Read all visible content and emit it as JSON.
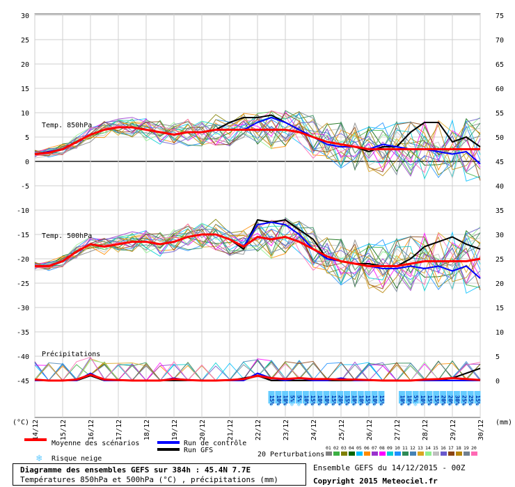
{
  "chart_data": {
    "type": "line",
    "title": "Diagramme des ensembles GEFS sur 384h : 45.4N 7.7E",
    "subtitle": "Températures 850hPa et 500hPa (°C) , précipitations (mm)",
    "run_info": "Ensemble GEFS du 14/12/2015 - 00Z",
    "copyright": "Copyright 2015 Meteociel.fr",
    "y_left_label": "(°C)",
    "y_right_label": "(mm)",
    "y_left_ticks": [
      30,
      25,
      20,
      15,
      10,
      5,
      0,
      -5,
      -10,
      -15,
      -20,
      -25,
      -30,
      -35,
      -40,
      -45
    ],
    "y_right_ticks": [
      75,
      70,
      65,
      60,
      55,
      50,
      45,
      40,
      35,
      30,
      25,
      20,
      15,
      10,
      5,
      0
    ],
    "ylim_left": [
      -45,
      30
    ],
    "ylim_right": [
      0,
      75
    ],
    "xlim": [
      14,
      30
    ],
    "x_ticks": [
      "14/12",
      "15/12",
      "16/12",
      "17/12",
      "18/12",
      "19/12",
      "20/12",
      "21/12",
      "22/12",
      "23/12",
      "24/12",
      "25/12",
      "26/12",
      "27/12",
      "28/12",
      "29/12",
      "30/12"
    ],
    "panel_labels": {
      "t850": "Temp. 850hPa",
      "t500": "Temp. 500hPa",
      "precip": "Précipitations"
    },
    "grid": true,
    "colors": {
      "mean": "#ff0000",
      "control": "#0000ff",
      "gfs": "#000000",
      "snow": "#66ccff"
    },
    "snow_risk": {
      "label": "Risque neige",
      "values": [
        "15%",
        "10%",
        "10%",
        "5%",
        "5%",
        "10%",
        "15%",
        "10%",
        "10%",
        "15%",
        "20%",
        "15%",
        "10%",
        "10%",
        "15%",
        "10%",
        "15%",
        "",
        "",
        "10%",
        "10%",
        "5%",
        "10%",
        "15%",
        "15%",
        "20%",
        "20%",
        "30%",
        "25%",
        "25%",
        "15%"
      ]
    },
    "legend": {
      "mean": "Moyenne des scénarios",
      "control": "Run de contrôle",
      "gfs": "Run GFS",
      "perturbations": "20 Perturbations",
      "pert_numbers": [
        "01",
        "02",
        "03",
        "04",
        "05",
        "06",
        "07",
        "08",
        "09",
        "10",
        "11",
        "12",
        "13",
        "14",
        "15",
        "16",
        "17",
        "18",
        "19",
        "20"
      ],
      "pert_colors": [
        "#808080",
        "#3cb043",
        "#808000",
        "#006400",
        "#00bfff",
        "#ff8c00",
        "#9932cc",
        "#ff00ff",
        "#00ced1",
        "#1e90ff",
        "#2e8b57",
        "#4682b4",
        "#daa520",
        "#90ee90",
        "#c0c0c0",
        "#6a5acd",
        "#8b4513",
        "#b8860b",
        "#708090",
        "#ff69b4"
      ]
    },
    "series": [
      {
        "name": "Moyenne des scénarios",
        "panel": "t850",
        "x": [
          14,
          14.5,
          15,
          15.5,
          16,
          16.5,
          17,
          17.5,
          18,
          18.5,
          19,
          19.5,
          20,
          20.5,
          21,
          21.5,
          22,
          22.5,
          23,
          23.5,
          24,
          24.5,
          25,
          25.5,
          26,
          26.5,
          27,
          27.5,
          28,
          28.5,
          29,
          29.5,
          30
        ],
        "values": [
          1.5,
          1.8,
          2.5,
          4,
          5.5,
          6.5,
          7,
          7,
          6.5,
          6,
          5.5,
          6,
          6,
          6.5,
          6.5,
          6.5,
          6.5,
          6.5,
          6.5,
          6,
          5,
          4,
          3.5,
          3,
          2.5,
          2.5,
          2.5,
          2.5,
          2.5,
          2.5,
          2.5,
          2.5,
          2.5
        ]
      },
      {
        "name": "Run de contrôle",
        "panel": "t850",
        "x": [
          14,
          14.5,
          15,
          15.5,
          16,
          16.5,
          17,
          17.5,
          18,
          18.5,
          19,
          19.5,
          20,
          20.5,
          21,
          21.5,
          22,
          22.5,
          23,
          23.5,
          24,
          24.5,
          25,
          25.5,
          26,
          26.5,
          27,
          27.5,
          28,
          28.5,
          29,
          29.5,
          30
        ],
        "values": [
          1.5,
          2,
          2.5,
          4,
          5.5,
          6.5,
          7,
          7,
          6.5,
          6,
          5.5,
          6,
          6,
          6.5,
          6.5,
          6.5,
          8,
          9,
          8,
          6.5,
          5,
          3.5,
          3,
          3,
          2.5,
          3.5,
          3,
          2.5,
          2.5,
          2,
          1.5,
          2,
          -0.5
        ]
      },
      {
        "name": "Run GFS",
        "panel": "t850",
        "x": [
          14,
          14.5,
          15,
          15.5,
          16,
          16.5,
          17,
          17.5,
          18,
          18.5,
          19,
          19.5,
          20,
          20.5,
          21,
          21.5,
          22,
          22.5,
          23,
          23.5,
          24,
          24.5,
          25,
          25.5,
          26,
          26.5,
          27,
          27.5,
          28,
          28.5,
          29,
          29.5,
          30
        ],
        "values": [
          1.5,
          2,
          2.5,
          4,
          5.5,
          6.5,
          7,
          7,
          6.5,
          6,
          5.5,
          6,
          6,
          6.5,
          8,
          9,
          9,
          9.5,
          8,
          6.5,
          5,
          4,
          3.5,
          3,
          2,
          3,
          3,
          6,
          8,
          8,
          4,
          5,
          3
        ]
      },
      {
        "name": "Moyenne des scénarios",
        "panel": "t500",
        "x": [
          14,
          14.5,
          15,
          15.5,
          16,
          16.5,
          17,
          17.5,
          18,
          18.5,
          19,
          19.5,
          20,
          20.5,
          21,
          21.5,
          22,
          22.5,
          23,
          23.5,
          24,
          24.5,
          25,
          25.5,
          26,
          26.5,
          27,
          27.5,
          28,
          28.5,
          29,
          29.5,
          30
        ],
        "values": [
          -21.5,
          -21.5,
          -20.5,
          -18.5,
          -17,
          -17.5,
          -17,
          -16.5,
          -16.5,
          -17,
          -16.5,
          -15.5,
          -15,
          -15,
          -16,
          -17.5,
          -15.5,
          -16,
          -15.5,
          -16.5,
          -18,
          -19.5,
          -20.5,
          -21,
          -21.5,
          -21.5,
          -21.5,
          -21,
          -20.5,
          -20.5,
          -20.5,
          -20.5,
          -20
        ]
      },
      {
        "name": "Run de contrôle",
        "panel": "t500",
        "x": [
          14,
          14.5,
          15,
          15.5,
          16,
          16.5,
          17,
          17.5,
          18,
          18.5,
          19,
          19.5,
          20,
          20.5,
          21,
          21.5,
          22,
          22.5,
          23,
          23.5,
          24,
          24.5,
          25,
          25.5,
          26,
          26.5,
          27,
          27.5,
          28,
          28.5,
          29,
          29.5,
          30
        ],
        "values": [
          -21.5,
          -21.5,
          -20.5,
          -18.5,
          -17,
          -17.5,
          -17,
          -16.5,
          -16.5,
          -17,
          -16.5,
          -15.5,
          -15,
          -15,
          -16,
          -17.5,
          -13,
          -12.5,
          -13,
          -15,
          -18,
          -20,
          -20.5,
          -21,
          -21.5,
          -22,
          -22,
          -21.5,
          -22,
          -21.5,
          -22.5,
          -21.5,
          -24
        ]
      },
      {
        "name": "Run GFS",
        "panel": "t500",
        "x": [
          14,
          14.5,
          15,
          15.5,
          16,
          16.5,
          17,
          17.5,
          18,
          18.5,
          19,
          19.5,
          20,
          20.5,
          21,
          21.5,
          22,
          22.5,
          23,
          23.5,
          24,
          24.5,
          25,
          25.5,
          26,
          26.5,
          27,
          27.5,
          28,
          28.5,
          29,
          29.5,
          30
        ],
        "values": [
          -21.5,
          -21.5,
          -20.5,
          -18.5,
          -17,
          -17.5,
          -17,
          -16.5,
          -16.5,
          -17,
          -16.5,
          -15.5,
          -15,
          -15,
          -16,
          -18,
          -12,
          -12.5,
          -12,
          -14,
          -16,
          -20,
          -20.5,
          -21,
          -21,
          -21.5,
          -21.5,
          -20,
          -17.5,
          -16.5,
          -15.5,
          -17,
          -18
        ]
      },
      {
        "name": "Moyenne des scénarios",
        "panel": "precip",
        "x": [
          14,
          14.5,
          15,
          15.5,
          16,
          16.5,
          17,
          17.5,
          18,
          18.5,
          19,
          19.5,
          20,
          20.5,
          21,
          21.5,
          22,
          22.5,
          23,
          23.5,
          24,
          24.5,
          25,
          25.5,
          26,
          26.5,
          27,
          27.5,
          28,
          28.5,
          29,
          29.5,
          30
        ],
        "values": [
          0.2,
          0,
          0,
          0.2,
          1.2,
          0.2,
          0.1,
          0,
          0,
          0,
          0.3,
          0.1,
          0,
          0,
          0.1,
          0.3,
          1,
          0.5,
          0.3,
          0.5,
          0.3,
          0.3,
          0.2,
          0.2,
          0.1,
          0,
          0,
          0,
          0.2,
          0.3,
          0.5,
          0.3,
          0.1
        ]
      },
      {
        "name": "Run de contrôle",
        "panel": "precip",
        "x": [
          14,
          14.5,
          15,
          15.5,
          16,
          16.5,
          17,
          17.5,
          18,
          18.5,
          19,
          19.5,
          20,
          20.5,
          21,
          21.5,
          22,
          22.5,
          23,
          23.5,
          24,
          24.5,
          25,
          25.5,
          26,
          26.5,
          27,
          27.5,
          28,
          28.5,
          29,
          29.5,
          30
        ],
        "values": [
          0,
          0,
          0,
          0,
          1.5,
          0,
          0,
          0,
          0,
          0,
          0.5,
          0,
          0,
          0,
          0,
          0,
          1.5,
          0.5,
          0,
          0.5,
          0,
          0,
          0.5,
          0,
          0,
          0,
          0,
          0,
          0,
          0,
          0,
          0,
          0
        ]
      },
      {
        "name": "Run GFS",
        "panel": "precip",
        "x": [
          14,
          14.5,
          15,
          15.5,
          16,
          16.5,
          17,
          17.5,
          18,
          18.5,
          19,
          19.5,
          20,
          20.5,
          21,
          21.5,
          22,
          22.5,
          23,
          23.5,
          24,
          24.5,
          25,
          25.5,
          26,
          26.5,
          27,
          27.5,
          28,
          28.5,
          29,
          29.5,
          30
        ],
        "values": [
          0,
          0,
          0,
          0,
          1,
          0,
          0,
          0,
          0,
          0,
          0,
          0,
          0,
          0,
          0,
          0.5,
          1,
          0,
          0,
          0,
          0,
          0,
          0,
          0,
          0,
          0,
          0,
          0,
          0,
          0,
          0.5,
          1.5,
          2.5
        ]
      }
    ]
  }
}
